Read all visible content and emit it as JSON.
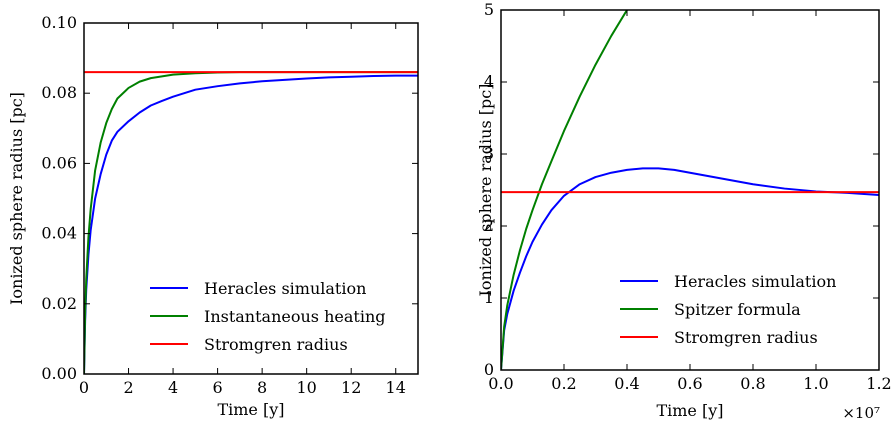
{
  "chart_data": [
    {
      "type": "line",
      "xlabel": "Time [y]",
      "ylabel": "Ionized sphere radius [pc]",
      "xlim": [
        0,
        15
      ],
      "ylim": [
        0,
        0.1
      ],
      "xticks": [
        "0",
        "2",
        "4",
        "6",
        "8",
        "10",
        "12",
        "14"
      ],
      "yticks": [
        "0.00",
        "0.02",
        "0.04",
        "0.06",
        "0.08",
        "0.10"
      ],
      "legend_position": "lower-right",
      "series": [
        {
          "name": "Heracles simulation",
          "color": "#0000ff",
          "x": [
            0,
            0.05,
            0.1,
            0.2,
            0.3,
            0.5,
            0.75,
            1,
            1.25,
            1.5,
            2,
            2.5,
            3,
            3.5,
            4,
            4.5,
            5,
            6,
            7,
            8,
            9,
            10,
            11,
            12,
            13,
            14,
            15
          ],
          "y": [
            0,
            0.015,
            0.024,
            0.034,
            0.041,
            0.05,
            0.057,
            0.0625,
            0.0665,
            0.069,
            0.072,
            0.0745,
            0.0765,
            0.0778,
            0.079,
            0.08,
            0.081,
            0.082,
            0.0828,
            0.0834,
            0.0838,
            0.0842,
            0.0845,
            0.0847,
            0.0849,
            0.085,
            0.085
          ]
        },
        {
          "name": "Instantaneous heating",
          "color": "#008000",
          "x": [
            0,
            0.05,
            0.1,
            0.2,
            0.3,
            0.5,
            0.75,
            1,
            1.25,
            1.5,
            2,
            2.5,
            3,
            4,
            5,
            6,
            7,
            8,
            10,
            15
          ],
          "y": [
            0,
            0.017,
            0.027,
            0.039,
            0.047,
            0.058,
            0.066,
            0.0715,
            0.0755,
            0.0785,
            0.0815,
            0.0833,
            0.0843,
            0.0853,
            0.0857,
            0.0859,
            0.086,
            0.086,
            0.086,
            0.086
          ]
        },
        {
          "name": "Stromgren radius",
          "color": "#ff0000",
          "x": [
            0,
            15
          ],
          "y": [
            0.086,
            0.086
          ]
        }
      ]
    },
    {
      "type": "line",
      "xlabel": "Time [y]",
      "ylabel": "Ionized sphere radius [pc]",
      "xlim": [
        0,
        1.2
      ],
      "ylim": [
        0,
        5
      ],
      "x_offset_label": "×10⁷",
      "xticks": [
        "0.0",
        "0.2",
        "0.4",
        "0.6",
        "0.8",
        "1.0",
        "1.2"
      ],
      "yticks": [
        "0",
        "1",
        "2",
        "3",
        "4",
        "5"
      ],
      "legend_position": "lower-right",
      "series": [
        {
          "name": "Heracles simulation",
          "color": "#0000ff",
          "x": [
            0,
            0.01,
            0.02,
            0.04,
            0.06,
            0.08,
            0.1,
            0.13,
            0.16,
            0.2,
            0.25,
            0.3,
            0.35,
            0.4,
            0.45,
            0.5,
            0.55,
            0.6,
            0.7,
            0.8,
            0.9,
            1.0,
            1.1,
            1.2
          ],
          "y": [
            0,
            0.55,
            0.78,
            1.1,
            1.35,
            1.58,
            1.78,
            2.02,
            2.22,
            2.42,
            2.58,
            2.68,
            2.74,
            2.78,
            2.8,
            2.8,
            2.78,
            2.74,
            2.66,
            2.58,
            2.52,
            2.48,
            2.46,
            2.43
          ]
        },
        {
          "name": "Spitzer formula",
          "color": "#008000",
          "x": [
            0,
            0.01,
            0.02,
            0.04,
            0.06,
            0.08,
            0.1,
            0.13,
            0.16,
            0.2,
            0.25,
            0.3,
            0.35,
            0.4
          ],
          "y": [
            0,
            0.6,
            0.9,
            1.32,
            1.66,
            1.96,
            2.22,
            2.58,
            2.9,
            3.32,
            3.8,
            4.24,
            4.64,
            5.0
          ]
        },
        {
          "name": "Stromgren radius",
          "color": "#ff0000",
          "x": [
            0,
            1.2
          ],
          "y": [
            2.47,
            2.47
          ]
        }
      ]
    }
  ]
}
